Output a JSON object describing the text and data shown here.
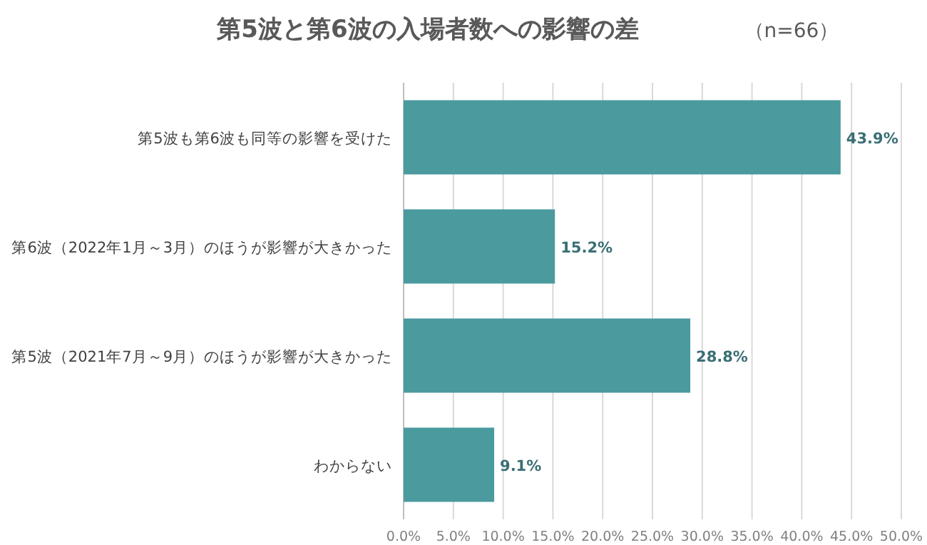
{
  "chart_data": {
    "type": "bar",
    "orientation": "horizontal",
    "title": "第5波と第6波の入場者数への影響の差",
    "subtitle": "（n=66）",
    "categories": [
      "第5波も第6波も同等の影響を受けた",
      "第6波（2022年1月～3月）のほうが影響が大きかった",
      "第5波（2021年7月～9月）のほうが影響が大きかった",
      "わからない"
    ],
    "values": [
      43.9,
      15.2,
      28.8,
      9.1
    ],
    "value_labels": [
      "43.9%",
      "15.2%",
      "28.8%",
      "9.1%"
    ],
    "color": "#4a9a9e",
    "xlim": [
      0,
      50
    ],
    "xticks": [
      {
        "value": 0,
        "label": "0.0%"
      },
      {
        "value": 5,
        "label": "5.0%"
      },
      {
        "value": 10,
        "label": "10.0%"
      },
      {
        "value": 15,
        "label": "15.0%"
      },
      {
        "value": 20,
        "label": "20.0%"
      },
      {
        "value": 25,
        "label": "25.0%"
      },
      {
        "value": 30,
        "label": "30.0%"
      },
      {
        "value": 35,
        "label": "35.0%"
      },
      {
        "value": 40,
        "label": "40.0%"
      },
      {
        "value": 45,
        "label": "45.0%"
      },
      {
        "value": 50,
        "label": "50.0%"
      }
    ],
    "grid": "x"
  }
}
